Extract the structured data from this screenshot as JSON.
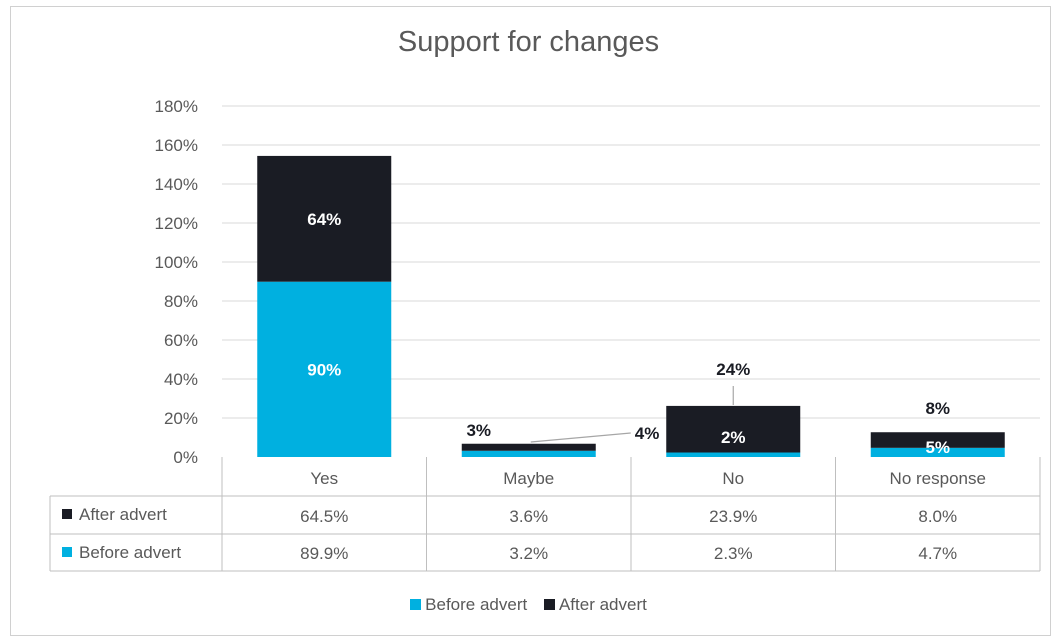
{
  "colors": {
    "before": "#00b0e0",
    "after": "#1a1c24",
    "grid": "#d9d9d9"
  },
  "chart_data": {
    "type": "bar",
    "stacked": true,
    "title": "Support for changes",
    "categories": [
      "Yes",
      "Maybe",
      "No",
      "No response"
    ],
    "series": [
      {
        "name": "Before advert",
        "values": [
          89.9,
          3.2,
          2.3,
          4.7
        ],
        "labels": [
          "90%",
          "3%",
          "2%",
          "5%"
        ],
        "table": [
          "89.9%",
          "3.2%",
          "2.3%",
          "4.7%"
        ]
      },
      {
        "name": "After advert",
        "values": [
          64.5,
          3.6,
          23.9,
          8.0
        ],
        "labels": [
          "64%",
          "4%",
          "24%",
          "8%"
        ],
        "table": [
          "64.5%",
          "3.6%",
          "23.9%",
          "8.0%"
        ]
      }
    ],
    "ylim": [
      0,
      180
    ],
    "yticks": [
      "0%",
      "20%",
      "40%",
      "60%",
      "80%",
      "100%",
      "120%",
      "140%",
      "160%",
      "180%"
    ],
    "data_table": true,
    "grid": true,
    "legend": "bottom"
  }
}
